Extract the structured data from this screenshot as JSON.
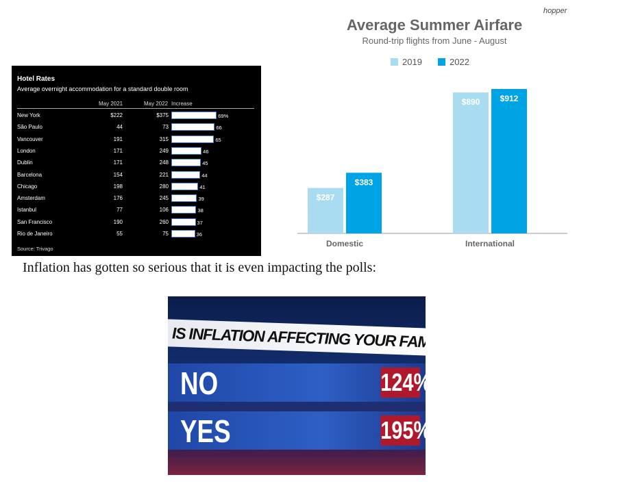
{
  "hotel_table": {
    "title": "Hotel Rates",
    "subtitle": "Average overnight accommodation for a standard double room",
    "columns": [
      "May 2021",
      "May 2022",
      "Increase"
    ],
    "rows": [
      [
        "New York",
        "$222",
        "$375"
      ],
      [
        "São Paulo",
        "44",
        "73"
      ],
      [
        "Vancouver",
        "191",
        "315"
      ],
      [
        "London",
        "171",
        "249"
      ],
      [
        "Dublin",
        "171",
        "248"
      ],
      [
        "Barcelona",
        "154",
        "221"
      ],
      [
        "Chicago",
        "198",
        "280"
      ],
      [
        "Amsterdam",
        "176",
        "245"
      ],
      [
        "Istanbul",
        "77",
        "106"
      ],
      [
        "San Francisco",
        "190",
        "260"
      ],
      [
        "Rio de Janeiro",
        "55",
        "75"
      ]
    ],
    "increase": {
      "values": [
        69,
        66,
        65,
        46,
        45,
        44,
        41,
        39,
        38,
        37,
        36
      ],
      "value_labels": [
        "69%",
        "66",
        "65",
        "46",
        "45",
        "44",
        "41",
        "39",
        "38",
        "37",
        "36"
      ]
    },
    "source": "Source: Trivago"
  },
  "chart_data": {
    "type": "bar",
    "title": "Average Summer Airfare",
    "subtitle": "Round-trip flights from June - August",
    "brand": "hopper",
    "categories": [
      "Domestic",
      "International"
    ],
    "series": [
      {
        "name": "2019",
        "color": "#a9dcf0",
        "values": [
          287,
          890
        ],
        "value_labels": [
          "$287",
          "$890"
        ]
      },
      {
        "name": "2022",
        "color": "#00a4e4",
        "values": [
          383,
          912
        ],
        "value_labels": [
          "$383",
          "$912"
        ]
      }
    ]
  },
  "text": "Inflation has gotten so serious that it is even impacting the polls:",
  "poll": {
    "question": "IS INFLATION AFFECTING YOUR FAMILY?",
    "options": [
      {
        "label": "NO",
        "result": "124%"
      },
      {
        "label": "YES",
        "result": "195%"
      }
    ]
  }
}
